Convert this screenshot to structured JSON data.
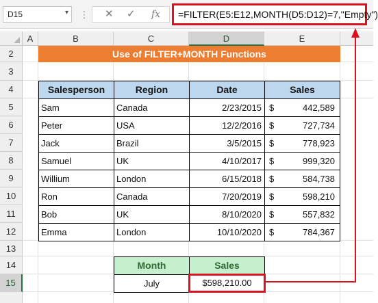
{
  "formula_bar": {
    "name_box": "D15",
    "cancel_icon": "✕",
    "enter_icon": "✓",
    "function_icon": "fx",
    "formula": "=FILTER(E5:E12,MONTH(D5:D12)=7,\"Empty\")"
  },
  "columns": [
    "A",
    "B",
    "C",
    "D",
    "E"
  ],
  "rows": [
    "2",
    "3",
    "4",
    "5",
    "6",
    "7",
    "8",
    "9",
    "10",
    "11",
    "12",
    "13",
    "14",
    "15"
  ],
  "selected_cell": "D15",
  "title": "Use of FILTER+MONTH Functions",
  "table": {
    "headers": [
      "Salesperson",
      "Region",
      "Date",
      "Sales"
    ],
    "rows": [
      {
        "name": "Sam",
        "region": "Canada",
        "date": "2/23/2015",
        "currency": "$",
        "sales": "442,589"
      },
      {
        "name": "Peter",
        "region": "USA",
        "date": "12/2/2016",
        "currency": "$",
        "sales": "727,734"
      },
      {
        "name": "Jack",
        "region": "Brazil",
        "date": "3/5/2015",
        "currency": "$",
        "sales": "778,923"
      },
      {
        "name": "Samuel",
        "region": "UK",
        "date": "4/10/2017",
        "currency": "$",
        "sales": "999,320"
      },
      {
        "name": "Willium",
        "region": "London",
        "date": "6/15/2018",
        "currency": "$",
        "sales": "584,738"
      },
      {
        "name": "Ron",
        "region": "Canada",
        "date": "7/20/2019",
        "currency": "$",
        "sales": "598,210"
      },
      {
        "name": "Bob",
        "region": "UK",
        "date": "8/10/2020",
        "currency": "$",
        "sales": "557,832"
      },
      {
        "name": "Emma",
        "region": "London",
        "date": "10/10/2020",
        "currency": "$",
        "sales": "784,367"
      }
    ]
  },
  "result": {
    "headers": [
      "Month",
      "Sales"
    ],
    "month": "July",
    "sales": "$598,210.00"
  },
  "colors": {
    "title_bg": "#ed7d31",
    "header_bg": "#bdd7ee",
    "result_header_bg": "#c6efce",
    "highlight": "#d9121f",
    "selection": "#217346"
  }
}
